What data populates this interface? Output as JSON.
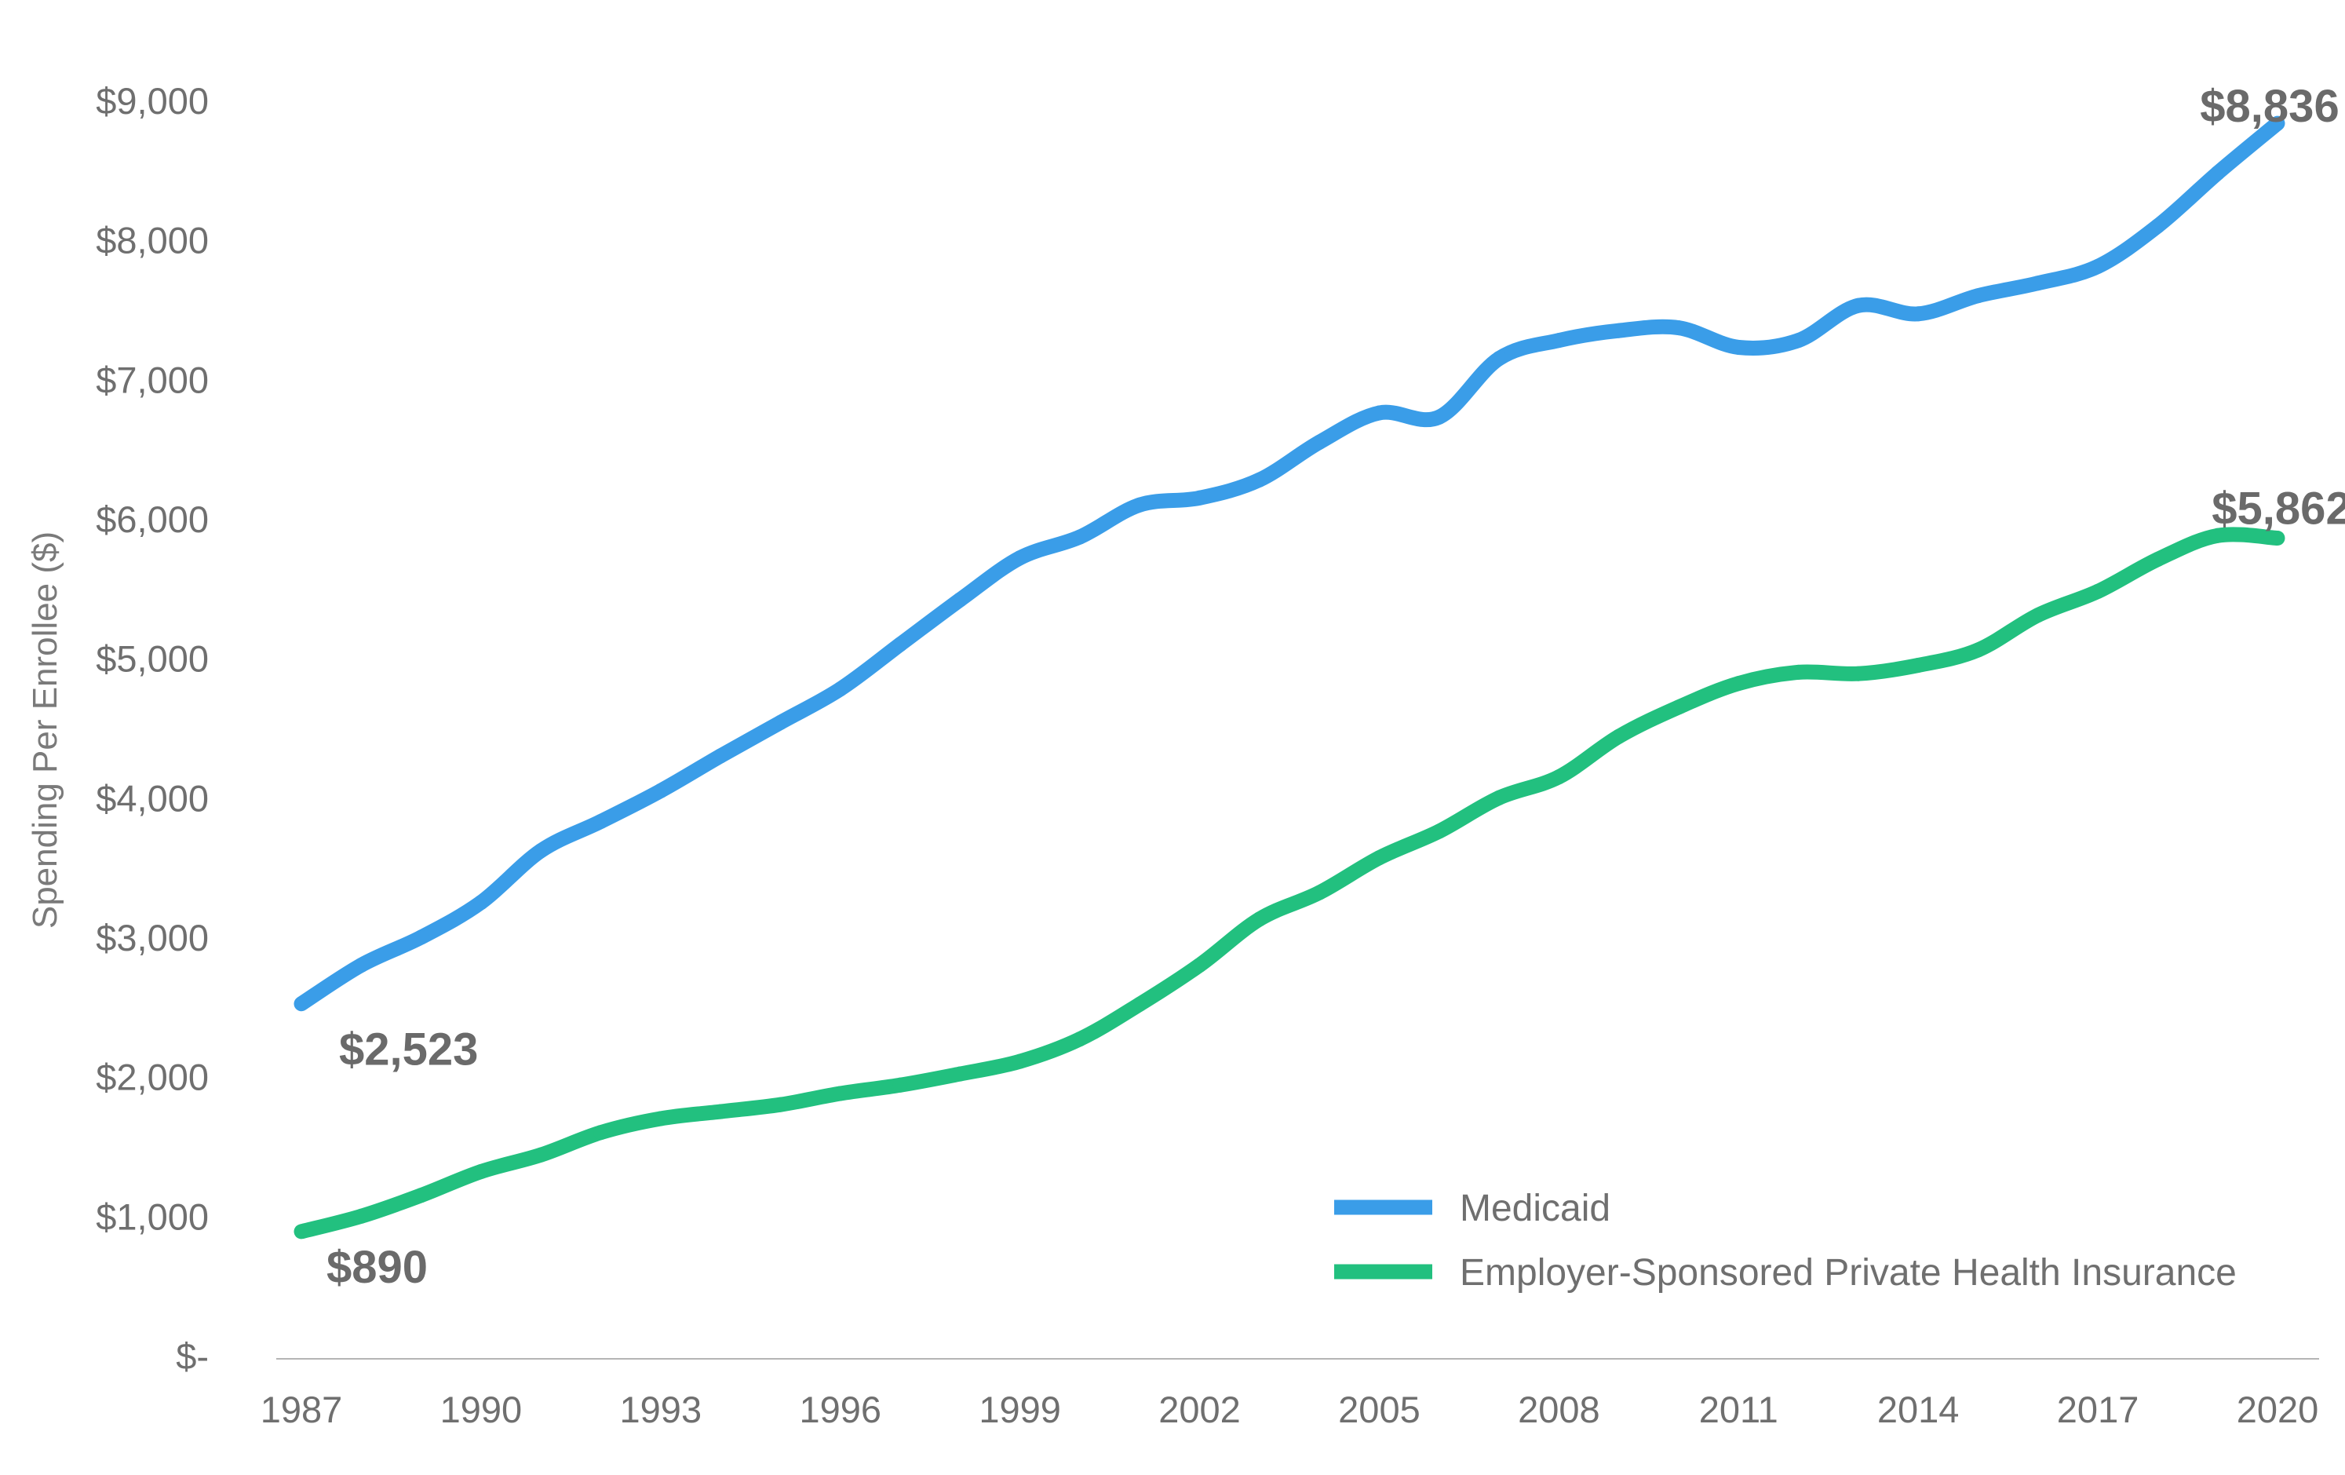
{
  "chart_data": {
    "type": "line",
    "title": "",
    "xlabel": "",
    "ylabel": "Spending Per Enrollee ($)",
    "xlim": [
      1987,
      2020
    ],
    "ylim": [
      0,
      9000
    ],
    "x_ticks": [
      "1987",
      "1990",
      "1993",
      "1996",
      "1999",
      "2002",
      "2005",
      "2008",
      "2011",
      "2014",
      "2017",
      "2020"
    ],
    "y_ticks": [
      {
        "value": 0,
        "label": "$-"
      },
      {
        "value": 1000,
        "label": "$1,000"
      },
      {
        "value": 2000,
        "label": "$2,000"
      },
      {
        "value": 3000,
        "label": "$3,000"
      },
      {
        "value": 4000,
        "label": "$4,000"
      },
      {
        "value": 5000,
        "label": "$5,000"
      },
      {
        "value": 6000,
        "label": "$6,000"
      },
      {
        "value": 7000,
        "label": "$7,000"
      },
      {
        "value": 8000,
        "label": "$8,000"
      },
      {
        "value": 9000,
        "label": "$9,000"
      }
    ],
    "grid": false,
    "legend_position": "bottom-right",
    "x": [
      1987,
      1988,
      1989,
      1990,
      1991,
      1992,
      1993,
      1994,
      1995,
      1996,
      1997,
      1998,
      1999,
      2000,
      2001,
      2002,
      2003,
      2004,
      2005,
      2006,
      2007,
      2008,
      2009,
      2010,
      2011,
      2012,
      2013,
      2014,
      2015,
      2016,
      2017,
      2018,
      2019,
      2020
    ],
    "series": [
      {
        "name": "Medicaid",
        "color": "#3a9de8",
        "values": [
          2523,
          2800,
          3000,
          3250,
          3620,
          3830,
          4050,
          4300,
          4540,
          4780,
          5100,
          5420,
          5720,
          5870,
          6100,
          6150,
          6280,
          6550,
          6760,
          6730,
          7150,
          7280,
          7350,
          7370,
          7230,
          7280,
          7530,
          7470,
          7600,
          7690,
          7810,
          8100,
          8480,
          8836
        ],
        "start_label": "$2,523",
        "end_label": "$8,836"
      },
      {
        "name": "Employer-Sponsored Private Health Insurance",
        "color": "#22c07f",
        "values": [
          890,
          1000,
          1150,
          1320,
          1440,
          1600,
          1700,
          1750,
          1800,
          1880,
          1940,
          2020,
          2110,
          2270,
          2520,
          2800,
          3130,
          3320,
          3570,
          3760,
          4000,
          4150,
          4440,
          4650,
          4820,
          4900,
          4890,
          4950,
          5060,
          5310,
          5480,
          5710,
          5880,
          5862
        ],
        "start_label": "$890",
        "end_label": "$5,862"
      }
    ]
  }
}
